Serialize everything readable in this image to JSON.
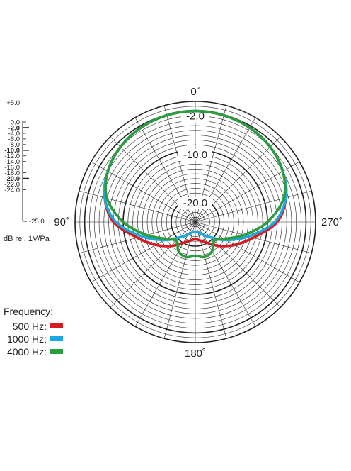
{
  "chart_data": {
    "type": "polar",
    "angle_labels": [
      {
        "angle": 0,
        "text": "0˚"
      },
      {
        "angle": 90,
        "text": "90˚"
      },
      {
        "angle": 180,
        "text": "180˚"
      },
      {
        "angle": 270,
        "text": "270˚"
      }
    ],
    "ring_labels": [
      "-2.0",
      "-10.0",
      "-20.0"
    ],
    "rlim_db": [
      -25,
      0
    ],
    "scale_labels": [
      "+5.0",
      "0.0",
      "-2.0",
      "-4.0",
      "-6.0",
      "-8.0",
      "-10.0",
      "-12.0",
      "-14.0",
      "-16.0",
      "-18.0",
      "-20.0",
      "-22.0",
      "-24.0",
      "-25.0"
    ],
    "scale_bold": [
      "-2.0",
      "-10.0",
      "-20.0"
    ],
    "unit_label": "dB rel. 1V/Pa",
    "legend_title": "Frequency:",
    "series": [
      {
        "name": "500 Hz:",
        "color": "#d71920",
        "angles": [
          0,
          15,
          30,
          45,
          60,
          75,
          90,
          105,
          120,
          135,
          150,
          165,
          180
        ],
        "db": [
          -2.0,
          -2.1,
          -2.4,
          -3.0,
          -4.0,
          -5.5,
          -8.0,
          -12.5,
          -15.5,
          -18.0,
          -20.0,
          -21.0,
          -21.5
        ]
      },
      {
        "name": "1000 Hz:",
        "color": "#1ba8e0",
        "angles": [
          0,
          15,
          30,
          45,
          60,
          75,
          90,
          105,
          120,
          135,
          150,
          165,
          180
        ],
        "db": [
          -2.0,
          -2.1,
          -2.4,
          -3.0,
          -4.0,
          -5.5,
          -8.5,
          -13.5,
          -17.5,
          -20.5,
          -22.0,
          -22.8,
          -23.0
        ]
      },
      {
        "name": "4000 Hz:",
        "color": "#2a9d3e",
        "angles": [
          0,
          15,
          30,
          45,
          60,
          75,
          90,
          105,
          120,
          135,
          150,
          165,
          180
        ],
        "db": [
          -2.0,
          -2.1,
          -2.4,
          -3.0,
          -4.0,
          -6.0,
          -10.0,
          -14.5,
          -18.0,
          -19.5,
          -18.0,
          -17.5,
          -18.0
        ]
      }
    ]
  }
}
